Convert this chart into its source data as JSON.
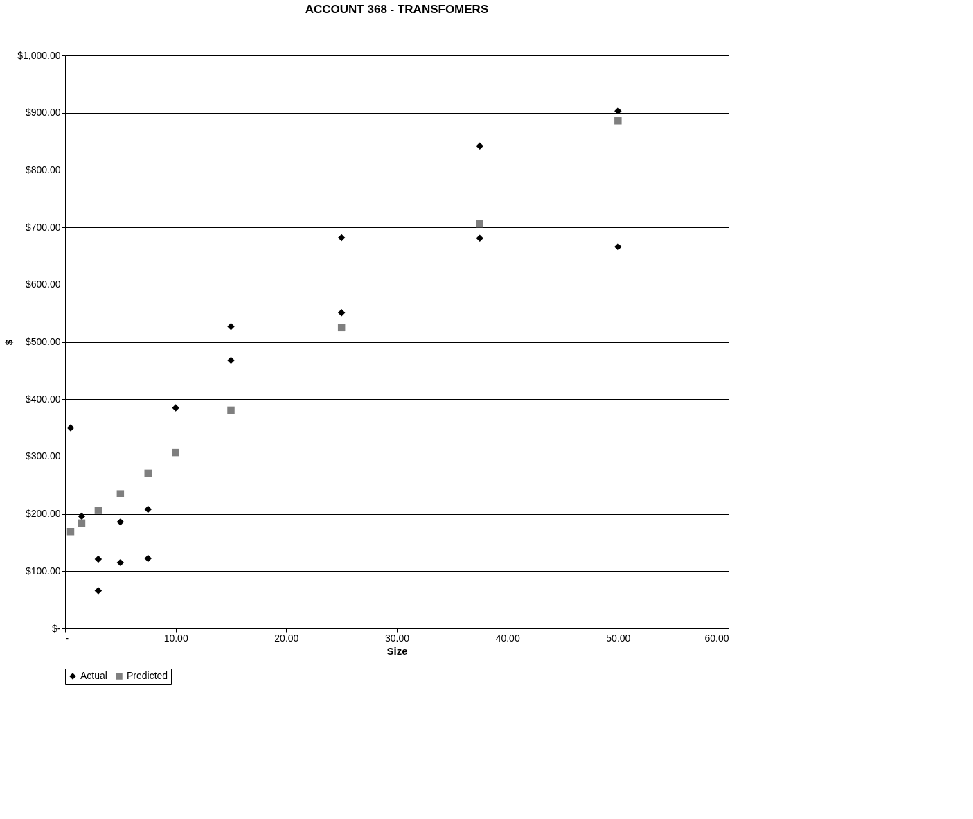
{
  "chart_data": {
    "type": "scatter",
    "title": "ACCOUNT 368 - TRANSFOMERS",
    "xlabel": "Size",
    "ylabel": "$",
    "xlim": [
      0,
      60
    ],
    "ylim": [
      0,
      1000
    ],
    "xticks": [
      {
        "value": 0,
        "label": "-"
      },
      {
        "value": 10,
        "label": "10.00"
      },
      {
        "value": 20,
        "label": "20.00"
      },
      {
        "value": 30,
        "label": "30.00"
      },
      {
        "value": 40,
        "label": "40.00"
      },
      {
        "value": 50,
        "label": "50.00"
      },
      {
        "value": 60,
        "label": "60.00"
      }
    ],
    "yticks": [
      {
        "value": 0,
        "label": "$-"
      },
      {
        "value": 100,
        "label": "$100.00"
      },
      {
        "value": 200,
        "label": "$200.00"
      },
      {
        "value": 300,
        "label": "$300.00"
      },
      {
        "value": 400,
        "label": "$400.00"
      },
      {
        "value": 500,
        "label": "$500.00"
      },
      {
        "value": 600,
        "label": "$600.00"
      },
      {
        "value": 700,
        "label": "$700.00"
      },
      {
        "value": 800,
        "label": "$800.00"
      },
      {
        "value": 900,
        "label": "$900.00"
      },
      {
        "value": 1000,
        "label": "$1,000.00"
      }
    ],
    "grid": "y",
    "legend": "bottom",
    "series": [
      {
        "name": "Actual",
        "color": "#000000",
        "marker": "diamond",
        "x": [
          0.5,
          1.5,
          3,
          3,
          5,
          5,
          7.5,
          7.5,
          10,
          15,
          15,
          25,
          25,
          37.5,
          37.5,
          50,
          50
        ],
        "values": [
          350,
          196,
          121,
          66,
          186,
          115,
          208,
          122,
          385,
          527,
          468,
          682,
          551,
          842,
          681,
          903,
          666
        ]
      },
      {
        "name": "Predicted",
        "color": "#7f7f7f",
        "marker": "square",
        "x": [
          0.5,
          1.5,
          3,
          5,
          7.5,
          10,
          15,
          25,
          37.5,
          50
        ],
        "values": [
          169,
          184,
          206,
          235,
          271,
          307,
          381,
          525,
          706,
          886
        ]
      }
    ]
  }
}
